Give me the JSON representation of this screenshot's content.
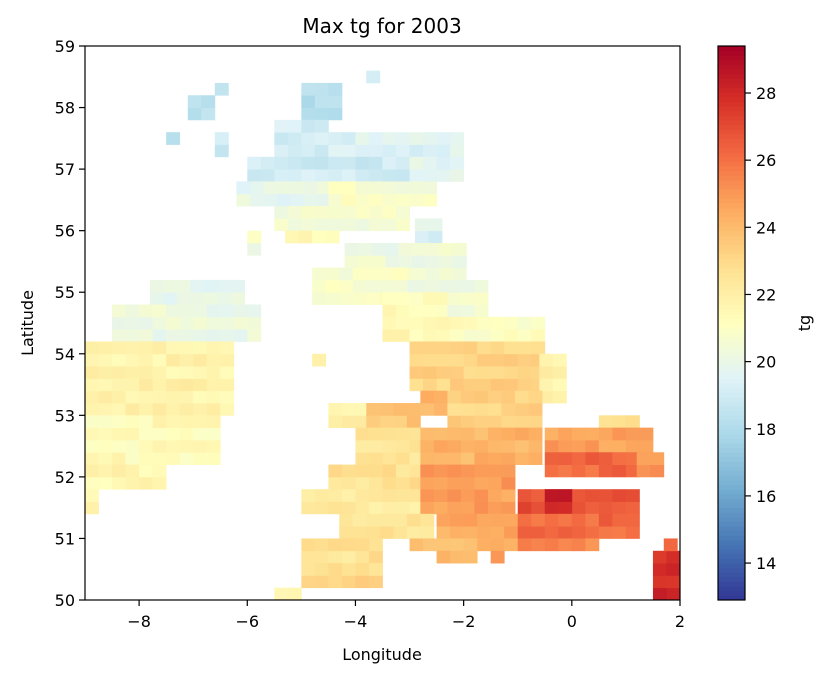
{
  "chart_data": {
    "type": "heatmap",
    "title": "Max tg for 2003",
    "xlabel": "Longitude",
    "ylabel": "Latitude",
    "xlim": [
      -9,
      2
    ],
    "ylim": [
      50,
      59
    ],
    "xticks": [
      -8,
      -6,
      -4,
      -2,
      0,
      2
    ],
    "yticks": [
      50,
      51,
      52,
      53,
      54,
      55,
      56,
      57,
      58,
      59
    ],
    "xtick_labels": [
      "−8",
      "−6",
      "−4",
      "−2",
      "0",
      "2"
    ],
    "ytick_labels": [
      "50",
      "51",
      "52",
      "53",
      "54",
      "55",
      "56",
      "57",
      "58",
      "59"
    ],
    "grid": false,
    "colorscale": "RdYlBu_r",
    "colorbar": {
      "label": "tg",
      "range": [
        12.9,
        29.4
      ],
      "ticks": [
        14,
        16,
        18,
        20,
        22,
        24,
        26,
        28
      ],
      "tick_labels": [
        "14",
        "16",
        "18",
        "20",
        "22",
        "24",
        "26",
        "28"
      ]
    },
    "cell_size": [
      0.25,
      0.2
    ],
    "regions": [
      {
        "lon": [
          -5.0,
          -4.2
        ],
        "lat": [
          57.8,
          58.4
        ],
        "value": 18.3
      },
      {
        "lon": [
          -3.8,
          -3.5
        ],
        "lat": [
          58.4,
          58.6
        ],
        "value": 18.8
      },
      {
        "lon": [
          -6.6,
          -6.3
        ],
        "lat": [
          58.2,
          58.4
        ],
        "value": 18.8
      },
      {
        "lon": [
          -7.1,
          -6.6
        ],
        "lat": [
          57.8,
          58.2
        ],
        "value": 18.3
      },
      {
        "lon": [
          -7.5,
          -7.2
        ],
        "lat": [
          57.4,
          57.6
        ],
        "value": 18.0
      },
      {
        "lon": [
          -6.6,
          -6.3
        ],
        "lat": [
          57.2,
          57.6
        ],
        "value": 19.0
      },
      {
        "lon": [
          -5.5,
          -4.5
        ],
        "lat": [
          57.2,
          57.8
        ],
        "value": 19.2
      },
      {
        "lon": [
          -4.5,
          -2.0
        ],
        "lat": [
          57.0,
          57.6
        ],
        "value": 19.5
      },
      {
        "lon": [
          -6.0,
          -3.0
        ],
        "lat": [
          56.6,
          57.2
        ],
        "value": 19.0
      },
      {
        "lon": [
          -3.0,
          -2.0
        ],
        "lat": [
          56.8,
          57.2
        ],
        "value": 19.6
      },
      {
        "lon": [
          -6.2,
          -4.5
        ],
        "lat": [
          56.4,
          56.8
        ],
        "value": 19.9
      },
      {
        "lon": [
          -4.5,
          -2.5
        ],
        "lat": [
          56.4,
          56.8
        ],
        "value": 20.8
      },
      {
        "lon": [
          -5.5,
          -3.0
        ],
        "lat": [
          56.0,
          56.4
        ],
        "value": 20.6
      },
      {
        "lon": [
          -2.9,
          -2.3
        ],
        "lat": [
          55.8,
          56.2
        ],
        "value": 19.5
      },
      {
        "lon": [
          -5.3,
          -4.3
        ],
        "lat": [
          55.8,
          56.0
        ],
        "value": 21.5
      },
      {
        "lon": [
          -6.0,
          -5.7
        ],
        "lat": [
          55.6,
          56.0
        ],
        "value": 20.5
      },
      {
        "lon": [
          -4.2,
          -2.0
        ],
        "lat": [
          55.0,
          55.8
        ],
        "value": 20.3
      },
      {
        "lon": [
          -4.8,
          -3.0
        ],
        "lat": [
          54.8,
          55.4
        ],
        "value": 20.8
      },
      {
        "lon": [
          -3.5,
          -2.3
        ],
        "lat": [
          54.6,
          55.0
        ],
        "value": 21.3
      },
      {
        "lon": [
          -2.3,
          -1.6
        ],
        "lat": [
          54.6,
          55.2
        ],
        "value": 20.4
      },
      {
        "lon": [
          -3.5,
          -2.0
        ],
        "lat": [
          54.2,
          54.6
        ],
        "value": 21.5
      },
      {
        "lon": [
          -2.0,
          -0.5
        ],
        "lat": [
          54.2,
          54.6
        ],
        "value": 21.0
      },
      {
        "lon": [
          -4.8,
          -4.5
        ],
        "lat": [
          53.8,
          54.0
        ],
        "value": 21.7
      },
      {
        "lon": [
          -7.8,
          -6.0
        ],
        "lat": [
          54.8,
          55.2
        ],
        "value": 19.9
      },
      {
        "lon": [
          -8.5,
          -5.8
        ],
        "lat": [
          54.2,
          54.8
        ],
        "value": 20.2
      },
      {
        "lon": [
          -9.0,
          -6.3
        ],
        "lat": [
          53.0,
          54.2
        ],
        "value": 21.8
      },
      {
        "lon": [
          -9.0,
          -6.5
        ],
        "lat": [
          52.2,
          53.0
        ],
        "value": 21.4
      },
      {
        "lon": [
          -9.0,
          -7.5
        ],
        "lat": [
          51.8,
          52.2
        ],
        "value": 21.6
      },
      {
        "lon": [
          -9.0,
          -8.8
        ],
        "lat": [
          51.4,
          51.8
        ],
        "value": 21.8
      },
      {
        "lon": [
          -3.0,
          -0.5
        ],
        "lat": [
          53.4,
          54.2
        ],
        "value": 23.2
      },
      {
        "lon": [
          -0.6,
          0.0
        ],
        "lat": [
          53.2,
          54.0
        ],
        "value": 21.8
      },
      {
        "lon": [
          -2.8,
          -2.3
        ],
        "lat": [
          53.0,
          53.4
        ],
        "value": 24.2
      },
      {
        "lon": [
          -4.5,
          -3.8
        ],
        "lat": [
          52.8,
          53.2
        ],
        "value": 22.0
      },
      {
        "lon": [
          -3.8,
          -2.8
        ],
        "lat": [
          52.8,
          53.2
        ],
        "value": 23.7
      },
      {
        "lon": [
          -2.3,
          -0.5
        ],
        "lat": [
          52.8,
          53.4
        ],
        "value": 23.2
      },
      {
        "lon": [
          0.5,
          1.2
        ],
        "lat": [
          52.6,
          53.0
        ],
        "value": 22.6
      },
      {
        "lon": [
          -4.0,
          -2.8
        ],
        "lat": [
          52.2,
          52.8
        ],
        "value": 22.5
      },
      {
        "lon": [
          -2.8,
          -0.5
        ],
        "lat": [
          52.2,
          52.8
        ],
        "value": 24.2
      },
      {
        "lon": [
          -0.5,
          1.5
        ],
        "lat": [
          52.4,
          52.8
        ],
        "value": 24.8
      },
      {
        "lon": [
          -0.5,
          1.2
        ],
        "lat": [
          52.0,
          52.4
        ],
        "value": 26.2
      },
      {
        "lon": [
          1.2,
          1.7
        ],
        "lat": [
          52.0,
          52.4
        ],
        "value": 25.0
      },
      {
        "lon": [
          -4.5,
          -2.8
        ],
        "lat": [
          51.8,
          52.2
        ],
        "value": 22.6
      },
      {
        "lon": [
          -5.0,
          -2.8
        ],
        "lat": [
          51.4,
          51.8
        ],
        "value": 22.3
      },
      {
        "lon": [
          -2.8,
          -1.0
        ],
        "lat": [
          51.4,
          52.2
        ],
        "value": 24.8
      },
      {
        "lon": [
          -1.0,
          1.2
        ],
        "lat": [
          51.4,
          51.8
        ],
        "value": 26.8
      },
      {
        "lon": [
          -0.5,
          0.0
        ],
        "lat": [
          51.4,
          51.8
        ],
        "value": 28.4
      },
      {
        "lon": [
          -4.3,
          -2.5
        ],
        "lat": [
          51.0,
          51.4
        ],
        "value": 22.5
      },
      {
        "lon": [
          -2.5,
          -1.0
        ],
        "lat": [
          51.0,
          51.4
        ],
        "value": 24.5
      },
      {
        "lon": [
          -1.0,
          1.2
        ],
        "lat": [
          51.0,
          51.4
        ],
        "value": 26.2
      },
      {
        "lon": [
          -3.0,
          -1.0
        ],
        "lat": [
          50.8,
          51.0
        ],
        "value": 24.0
      },
      {
        "lon": [
          -1.0,
          0.5
        ],
        "lat": [
          50.8,
          51.0
        ],
        "value": 25.4
      },
      {
        "lon": [
          -5.0,
          -3.5
        ],
        "lat": [
          50.6,
          51.0
        ],
        "value": 22.6
      },
      {
        "lon": [
          -2.5,
          -1.7
        ],
        "lat": [
          50.6,
          50.8
        ],
        "value": 23.8
      },
      {
        "lon": [
          -1.5,
          -1.2
        ],
        "lat": [
          50.6,
          50.8
        ],
        "value": 25.3
      },
      {
        "lon": [
          -5.0,
          -3.5
        ],
        "lat": [
          50.2,
          50.6
        ],
        "value": 23.0
      },
      {
        "lon": [
          -5.5,
          -5.0
        ],
        "lat": [
          50.0,
          50.2
        ],
        "value": 22.0
      },
      {
        "lon": [
          1.5,
          2.0
        ],
        "lat": [
          50.0,
          50.8
        ],
        "value": 27.9
      },
      {
        "lon": [
          1.7,
          2.0
        ],
        "lat": [
          50.8,
          51.0
        ],
        "value": 26.5
      }
    ]
  }
}
